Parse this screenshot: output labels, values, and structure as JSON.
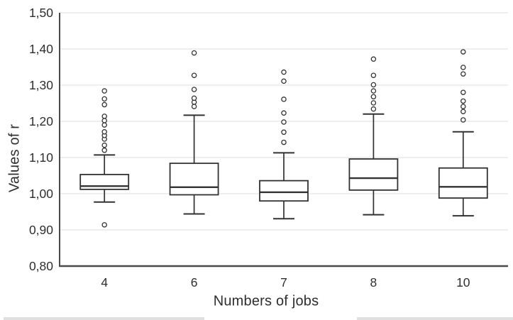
{
  "chart_data": {
    "type": "boxplot",
    "title": "",
    "xlabel": "Numbers of jobs",
    "ylabel": "Values of r",
    "categories": [
      "4",
      "6",
      "7",
      "8",
      "10"
    ],
    "ylim": [
      0.8,
      1.5
    ],
    "ytick_values": [
      0.8,
      0.9,
      1.0,
      1.1,
      1.2,
      1.3,
      1.4,
      1.5
    ],
    "ytick_labels": [
      "0,80",
      "0,90",
      "1,00",
      "1,10",
      "1,20",
      "1,30",
      "1,40",
      "1,50"
    ],
    "decimal_separator": ",",
    "grid": "horizontal",
    "legend": "none",
    "series": [
      {
        "category": "4",
        "whisker_low": 0.977,
        "q1": 1.012,
        "median": 1.021,
        "q3": 1.053,
        "whisker_high": 1.107,
        "outliers": [
          0.914,
          1.12,
          1.134,
          1.151,
          1.161,
          1.171,
          1.19,
          1.202,
          1.214,
          1.246,
          1.262,
          1.284
        ]
      },
      {
        "category": "6",
        "whisker_low": 0.944,
        "q1": 0.997,
        "median": 1.018,
        "q3": 1.084,
        "whisker_high": 1.217,
        "outliers": [
          1.241,
          1.253,
          1.264,
          1.288,
          1.327,
          1.389
        ]
      },
      {
        "category": "7",
        "whisker_low": 0.931,
        "q1": 0.98,
        "median": 1.004,
        "q3": 1.036,
        "whisker_high": 1.113,
        "outliers": [
          1.142,
          1.17,
          1.198,
          1.223,
          1.261,
          1.311,
          1.336
        ]
      },
      {
        "category": "8",
        "whisker_low": 0.942,
        "q1": 1.01,
        "median": 1.043,
        "q3": 1.096,
        "whisker_high": 1.22,
        "outliers": [
          1.234,
          1.251,
          1.268,
          1.284,
          1.301,
          1.327,
          1.372
        ]
      },
      {
        "category": "10",
        "whisker_low": 0.939,
        "q1": 0.988,
        "median": 1.019,
        "q3": 1.071,
        "whisker_high": 1.171,
        "outliers": [
          1.204,
          1.227,
          1.241,
          1.256,
          1.28,
          1.331,
          1.349,
          1.392
        ]
      }
    ]
  },
  "colors": {
    "box_stroke": "#323232",
    "box_fill": "#ffffff",
    "axis": "#4a4a4a",
    "gridline": "#e4e4e4",
    "text": "#2e2e2e",
    "artifact_strip": "#e0e0e0"
  }
}
